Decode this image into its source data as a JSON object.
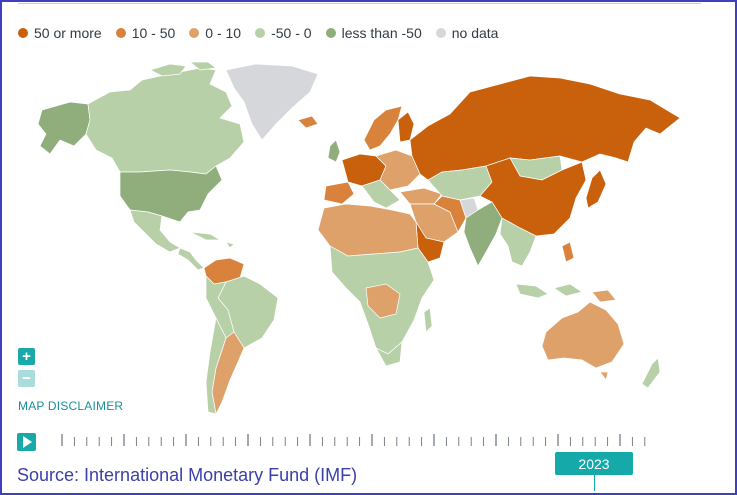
{
  "colors": {
    "fifty_or_more": "#c9600c",
    "ten_to_fifty": "#d9823b",
    "zero_to_ten": "#dfa16a",
    "neg50_to_zero": "#b8d0a8",
    "less_than_neg50": "#8fae7c",
    "no_data": "#d6d7db",
    "accent": "#1aa9a9",
    "frame": "#3f3fbf"
  },
  "legend": [
    {
      "label": "50 or more",
      "color": "#c9600c"
    },
    {
      "label": "10 - 50",
      "color": "#d9823b"
    },
    {
      "label": "0 - 10",
      "color": "#dfa16a"
    },
    {
      "label": "-50 - 0",
      "color": "#b8d0a8"
    },
    {
      "label": "less than -50",
      "color": "#8fae7c"
    },
    {
      "label": "no data",
      "color": "#d6d7db"
    }
  ],
  "controls": {
    "zoom_in": "+",
    "zoom_out": "−",
    "disclaimer": "MAP DISCLAIMER",
    "play_icon": "play-icon"
  },
  "timeline": {
    "selected_year": "2023",
    "tick_count": 48
  },
  "footer": {
    "source": "Source: International Monetary Fund (IMF)"
  }
}
